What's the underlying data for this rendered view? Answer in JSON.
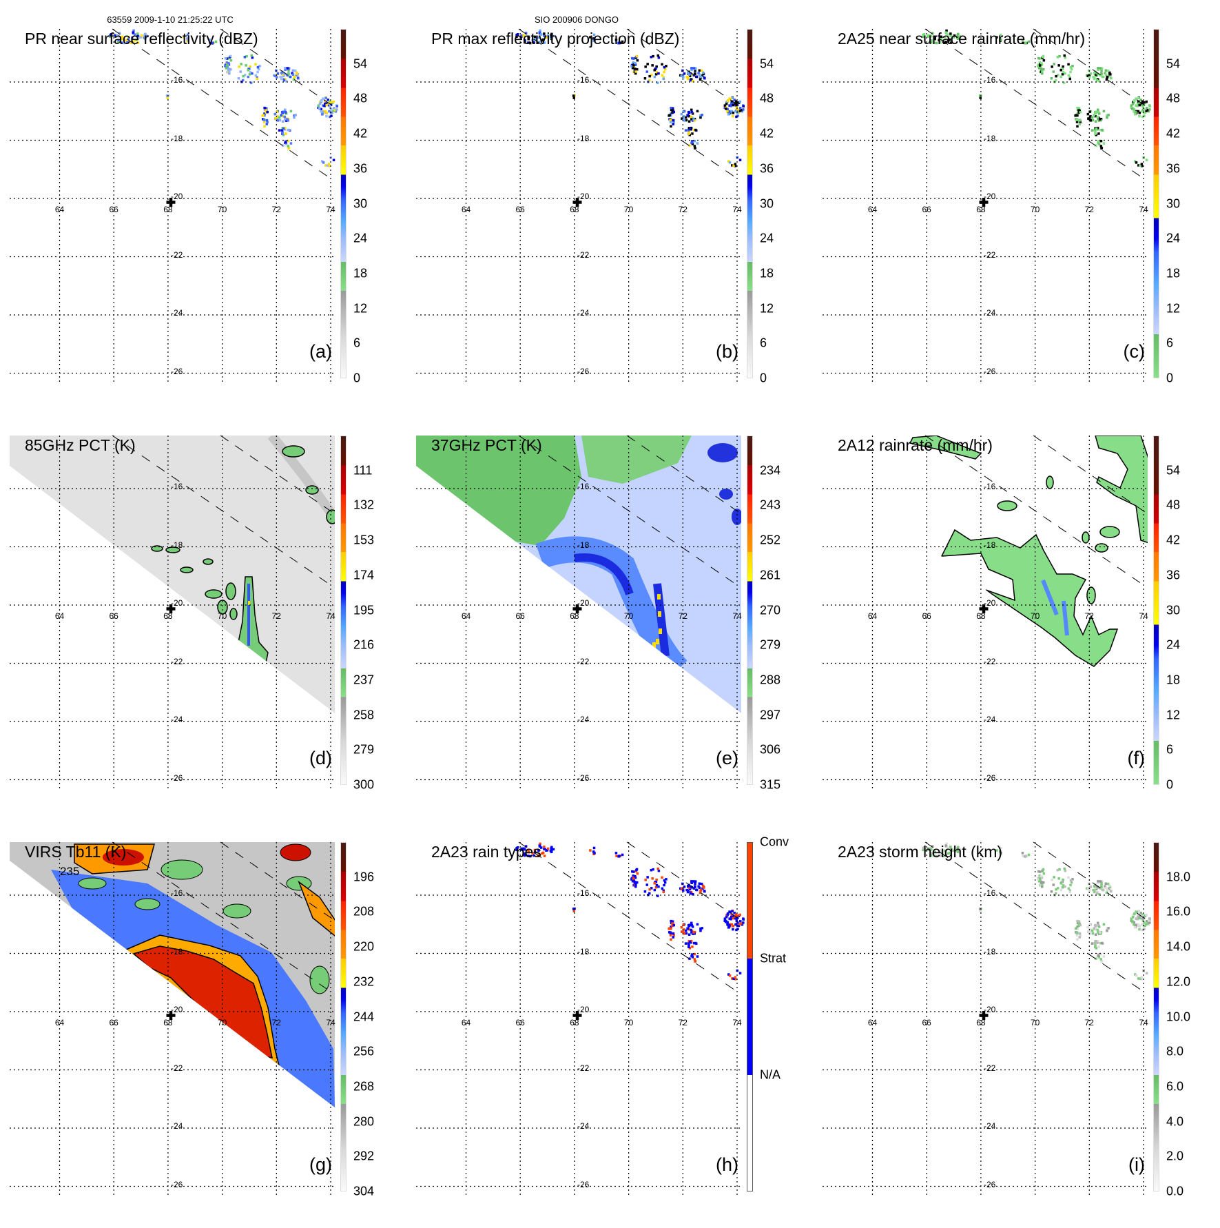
{
  "header": {
    "orbit_time": "63559 2009-1-10 21:25:22 UTC",
    "storm": "SIO 200906 DONGO"
  },
  "axes": {
    "lon_labels": [
      "64",
      "66",
      "68",
      "70",
      "72",
      "74"
    ],
    "lat_labels": [
      "-16",
      "-18",
      "-20",
      "-22",
      "-24",
      "-26"
    ]
  },
  "contour_label": "235",
  "panels": [
    {
      "title": "PR near surface reflectivity (dBZ)",
      "letter": "(a)",
      "field": "pr",
      "colorbar": {
        "style": "dbz",
        "range": [
          0,
          60
        ],
        "ticks": [
          0,
          6,
          12,
          18,
          24,
          30,
          36,
          42,
          48,
          54
        ],
        "labels": [
          "0",
          "6",
          "12",
          "18",
          "24",
          "30",
          "36",
          "42",
          "48",
          "54"
        ]
      }
    },
    {
      "title": "PR max reflectivity projection (dBZ)",
      "letter": "(b)",
      "field": "prmax",
      "colorbar": {
        "style": "dbz",
        "range": [
          0,
          60
        ],
        "ticks": [
          0,
          6,
          12,
          18,
          24,
          30,
          36,
          42,
          48,
          54
        ],
        "labels": [
          "0",
          "6",
          "12",
          "18",
          "24",
          "30",
          "36",
          "42",
          "48",
          "54"
        ]
      }
    },
    {
      "title": "2A25 near surface rainrate (mm/hr)",
      "letter": "(c)",
      "field": "rain25",
      "colorbar": {
        "style": "rain",
        "range": [
          0,
          60
        ],
        "ticks": [
          0,
          6,
          12,
          18,
          24,
          30,
          36,
          42,
          48,
          54
        ],
        "labels": [
          "0",
          "6",
          "12",
          "18",
          "24",
          "30",
          "36",
          "42",
          "48",
          "54"
        ]
      }
    },
    {
      "title": "85GHz PCT (K)",
      "letter": "(d)",
      "field": "pct85",
      "colorbar": {
        "style": "dbz",
        "range": [
          300,
          90
        ],
        "ticks": [
          300,
          279,
          258,
          237,
          216,
          195,
          174,
          153,
          132,
          111
        ],
        "labels": [
          "300",
          "279",
          "258",
          "237",
          "216",
          "195",
          "174",
          "153",
          "132",
          "111"
        ]
      }
    },
    {
      "title": "37GHz PCT (K)",
      "letter": "(e)",
      "field": "pct37",
      "colorbar": {
        "style": "dbz",
        "range": [
          315,
          225
        ],
        "ticks": [
          315,
          306,
          297,
          288,
          279,
          270,
          261,
          252,
          243,
          234
        ],
        "labels": [
          "315",
          "306",
          "297",
          "288",
          "279",
          "270",
          "261",
          "252",
          "243",
          "234"
        ]
      }
    },
    {
      "title": "2A12 rainrate (mm/hr)",
      "letter": "(f)",
      "field": "rain12",
      "colorbar": {
        "style": "rain",
        "range": [
          0,
          60
        ],
        "ticks": [
          0,
          6,
          12,
          18,
          24,
          30,
          36,
          42,
          48,
          54
        ],
        "labels": [
          "0",
          "6",
          "12",
          "18",
          "24",
          "30",
          "36",
          "42",
          "48",
          "54"
        ]
      }
    },
    {
      "title": "VIRS Tb11 (K)",
      "letter": "(g)",
      "field": "virs",
      "colorbar": {
        "style": "dbz",
        "range": [
          304,
          184
        ],
        "ticks": [
          304,
          292,
          280,
          268,
          256,
          244,
          232,
          220,
          208,
          196
        ],
        "labels": [
          "304",
          "292",
          "280",
          "268",
          "256",
          "244",
          "232",
          "220",
          "208",
          "196"
        ]
      }
    },
    {
      "title": "2A23 rain types",
      "letter": "(h)",
      "field": "types",
      "colorbar": {
        "style": "type",
        "range": [
          0,
          3
        ],
        "ticks": [
          1,
          2,
          3
        ],
        "labels": [
          "N/A",
          "Strat",
          "Conv"
        ]
      }
    },
    {
      "title": "2A23 storm height (km)",
      "letter": "(i)",
      "field": "height",
      "colorbar": {
        "style": "dbz",
        "range": [
          0,
          20
        ],
        "ticks": [
          0,
          2,
          4,
          6,
          8,
          10,
          12,
          14,
          16,
          18
        ],
        "labels": [
          "0.0",
          "2.0",
          "4.0",
          "6.0",
          "8.0",
          "10.0",
          "12.0",
          "14.0",
          "16.0",
          "18.0"
        ]
      }
    }
  ]
}
